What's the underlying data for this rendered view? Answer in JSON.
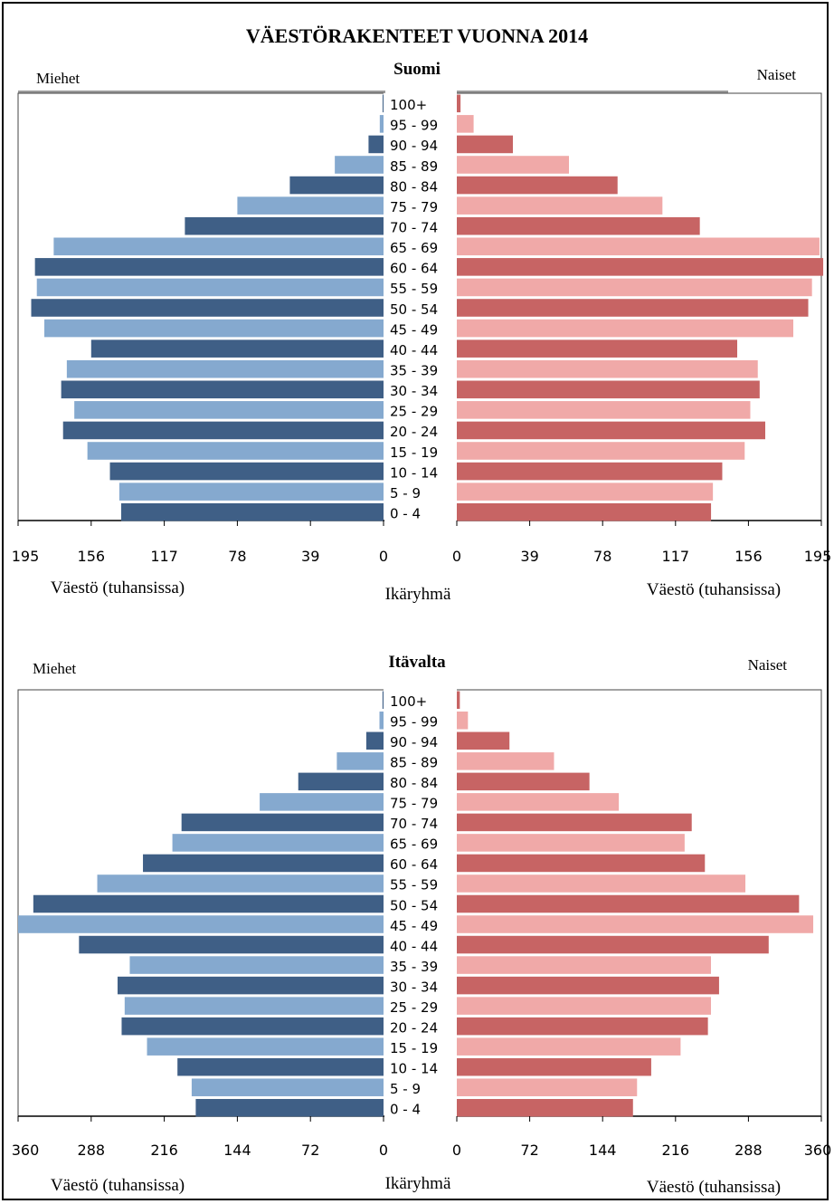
{
  "title": "VÄESTÖRAKENTEET VUONNA 2014",
  "colors": {
    "male_dark": "#3f5f86",
    "male_light": "#85a9cf",
    "female_dark": "#c76464",
    "female_light": "#f0a9a8",
    "axis": "#000000"
  },
  "chart_data": [
    {
      "type": "bar",
      "title": "Suomi",
      "left_label": "Miehet",
      "right_label": "Naiset",
      "center_xlabel": "Ikäryhmä",
      "left_xlabel": "Väestö (tuhansissa)",
      "right_xlabel": "Väestö (tuhansissa)",
      "xlim": [
        0,
        195
      ],
      "ticks": [
        0,
        39,
        78,
        117,
        156,
        195
      ],
      "categories": [
        "100+",
        "95 - 99",
        "90 - 94",
        "85 - 89",
        "80 - 84",
        "75 - 79",
        "70 - 74",
        "65 - 69",
        "60 - 64",
        "55 - 59",
        "50 - 54",
        "45 - 49",
        "40 - 44",
        "35 - 39",
        "30 - 34",
        "25 - 29",
        "20 - 24",
        "15 - 19",
        "10 - 14",
        "5 - 9",
        "0 - 4"
      ],
      "series": [
        {
          "name": "Miehet",
          "values": [
            0.5,
            2,
            8,
            26,
            50,
            78,
            106,
            176,
            186,
            185,
            188,
            181,
            156,
            169,
            172,
            165,
            171,
            158,
            146,
            141,
            140
          ]
        },
        {
          "name": "Naiset",
          "values": [
            2,
            9,
            30,
            60,
            86,
            110,
            130,
            194,
            196,
            190,
            188,
            180,
            150,
            161,
            162,
            157,
            165,
            154,
            142,
            137,
            136
          ]
        }
      ]
    },
    {
      "type": "bar",
      "title": "Itävalta",
      "left_label": "Miehet",
      "right_label": "Naiset",
      "center_xlabel": "Ikäryhmä",
      "left_xlabel": "Väestö (tuhansissa)",
      "right_xlabel": "Väestö (tuhansissa)",
      "xlim": [
        0,
        360
      ],
      "ticks": [
        0,
        72,
        144,
        216,
        288,
        360
      ],
      "categories": [
        "100+",
        "95 - 99",
        "90 - 94",
        "85 - 89",
        "80 - 84",
        "75 - 79",
        "70 - 74",
        "65 - 69",
        "60 - 64",
        "55 - 59",
        "50 - 54",
        "45 - 49",
        "40 - 44",
        "35 - 39",
        "30 - 34",
        "25 - 29",
        "20 - 24",
        "15 - 19",
        "10 - 14",
        "5 - 9",
        "0 - 4"
      ],
      "series": [
        {
          "name": "Miehet",
          "values": [
            1,
            4,
            17,
            46,
            84,
            122,
            199,
            208,
            237,
            282,
            345,
            360,
            300,
            250,
            262,
            255,
            258,
            233,
            203,
            189,
            185
          ]
        },
        {
          "name": "Naiset",
          "values": [
            3,
            11,
            52,
            96,
            131,
            160,
            232,
            225,
            245,
            285,
            338,
            352,
            308,
            251,
            259,
            251,
            248,
            221,
            192,
            178,
            174
          ]
        }
      ]
    }
  ]
}
